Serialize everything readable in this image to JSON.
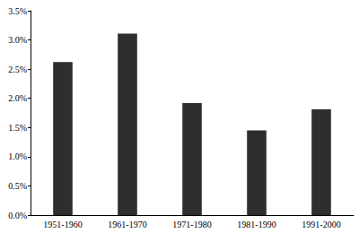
{
  "chart_data": {
    "type": "bar",
    "categories": [
      "1951-1960",
      "1961-1970",
      "1971-1980",
      "1981-1990",
      "1991-2000"
    ],
    "values": [
      2.62,
      3.11,
      1.92,
      1.45,
      1.81
    ],
    "color": "#2e2e2e",
    "ylim": [
      0,
      3.5
    ],
    "yticks": [
      {
        "value": 0,
        "label": "0.0%"
      },
      {
        "value": 0.5,
        "label": "0.5%"
      },
      {
        "value": 1,
        "label": "1.0%"
      },
      {
        "value": 1.5,
        "label": "1.5%"
      },
      {
        "value": 2,
        "label": "2.0%"
      },
      {
        "value": 2.5,
        "label": "2.5%"
      },
      {
        "value": 3,
        "label": "3.0%"
      },
      {
        "value": 3.5,
        "label": "3.5%"
      }
    ],
    "grid": false
  }
}
